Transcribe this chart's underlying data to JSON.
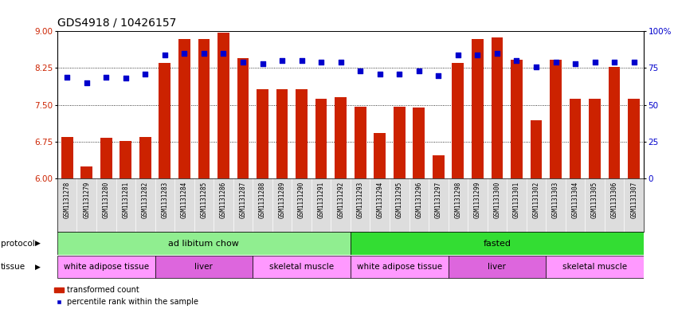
{
  "title": "GDS4918 / 10426157",
  "samples": [
    "GSM1131278",
    "GSM1131279",
    "GSM1131280",
    "GSM1131281",
    "GSM1131282",
    "GSM1131283",
    "GSM1131284",
    "GSM1131285",
    "GSM1131286",
    "GSM1131287",
    "GSM1131288",
    "GSM1131289",
    "GSM1131290",
    "GSM1131291",
    "GSM1131292",
    "GSM1131293",
    "GSM1131294",
    "GSM1131295",
    "GSM1131296",
    "GSM1131297",
    "GSM1131298",
    "GSM1131299",
    "GSM1131300",
    "GSM1131301",
    "GSM1131302",
    "GSM1131303",
    "GSM1131304",
    "GSM1131305",
    "GSM1131306",
    "GSM1131307"
  ],
  "bar_values": [
    6.85,
    6.25,
    6.83,
    6.77,
    6.85,
    8.35,
    8.85,
    8.85,
    8.98,
    8.45,
    7.82,
    7.82,
    7.82,
    7.62,
    7.65,
    7.46,
    6.93,
    7.46,
    7.45,
    6.47,
    8.36,
    8.85,
    8.88,
    8.42,
    7.18,
    8.42,
    7.62,
    7.62,
    8.28,
    7.62
  ],
  "dot_values": [
    69,
    65,
    69,
    68,
    71,
    84,
    85,
    85,
    85,
    79,
    78,
    80,
    80,
    79,
    79,
    73,
    71,
    71,
    73,
    70,
    84,
    84,
    85,
    80,
    76,
    79,
    78,
    79,
    79,
    79
  ],
  "ylim_left": [
    6,
    9
  ],
  "ylim_right": [
    0,
    100
  ],
  "yticks_left": [
    6,
    6.75,
    7.5,
    8.25,
    9
  ],
  "yticks_right": [
    0,
    25,
    50,
    75,
    100
  ],
  "bar_color": "#cc2200",
  "dot_color": "#0000cc",
  "bar_bottom": 6,
  "protocol_groups": [
    {
      "label": "ad libitum chow",
      "start": 0,
      "end": 14,
      "color": "#90ee90"
    },
    {
      "label": "fasted",
      "start": 15,
      "end": 29,
      "color": "#33dd33"
    }
  ],
  "tissue_groups": [
    {
      "label": "white adipose tissue",
      "start": 0,
      "end": 4,
      "color": "#ff99ff"
    },
    {
      "label": "liver",
      "start": 5,
      "end": 9,
      "color": "#dd66dd"
    },
    {
      "label": "skeletal muscle",
      "start": 10,
      "end": 14,
      "color": "#ff99ff"
    },
    {
      "label": "white adipose tissue",
      "start": 15,
      "end": 19,
      "color": "#ff99ff"
    },
    {
      "label": "liver",
      "start": 20,
      "end": 24,
      "color": "#dd66dd"
    },
    {
      "label": "skeletal muscle",
      "start": 25,
      "end": 29,
      "color": "#ff99ff"
    }
  ],
  "protocol_label": "protocol",
  "tissue_label": "tissue",
  "legend_bar_label": "transformed count",
  "legend_dot_label": "percentile rank within the sample",
  "bg_color": "#ffffff",
  "title_fontsize": 10,
  "tick_fontsize": 5.5,
  "axis_label_fontsize": 7.5,
  "row_label_fontsize": 7.5,
  "row_text_fontsize": 8,
  "legend_fontsize": 7
}
